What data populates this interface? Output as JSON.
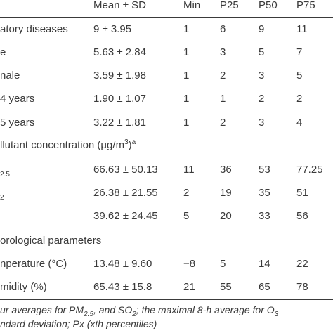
{
  "header": {
    "mean_sd": "Mean ± SD",
    "min": "Min",
    "p25": "P25",
    "p50": "P50",
    "p75": "P75"
  },
  "sections": {
    "pollutant_prefix": "llutant concentration (μg/m",
    "pollutant_sup": "3",
    "pollutant_suffix": ")",
    "pollutant_footnote_mark": "a",
    "meteo": "orological parameters"
  },
  "rows": [
    {
      "label": "atory diseases",
      "mean": "9 ± 3.95",
      "min": "1",
      "p25": "6",
      "p50": "9",
      "p75": "11"
    },
    {
      "label": "e",
      "mean": "5.63 ± 2.84",
      "min": "1",
      "p25": "3",
      "p50": "5",
      "p75": "7"
    },
    {
      "label": "nale",
      "mean": "3.59 ± 1.98",
      "min": "1",
      "p25": "2",
      "p50": "3",
      "p75": "5"
    },
    {
      "label": "4 years",
      "mean": "1.90 ± 1.07",
      "min": "1",
      "p25": "1",
      "p50": "2",
      "p75": "2"
    },
    {
      "label": "5 years",
      "mean": "3.22 ± 1.81",
      "min": "1",
      "p25": "2",
      "p50": "3",
      "p75": "4"
    },
    {
      "label_sub": "2.5",
      "mean": "66.63 ± 50.13",
      "min": "11",
      "p25": "36",
      "p50": "53",
      "p75": "77.25"
    },
    {
      "label_sub": "2",
      "mean": "26.38 ± 21.55",
      "min": "2",
      "p25": "19",
      "p50": "35",
      "p75": "51"
    },
    {
      "label": "",
      "mean": "39.62 ± 24.45",
      "min": "5",
      "p25": "20",
      "p50": "33",
      "p75": "56"
    },
    {
      "label": "nperature (°C)",
      "mean": "13.48 ± 9.60",
      "min": "−8",
      "p25": "5",
      "p50": "14",
      "p75": "22"
    },
    {
      "label": "midity (%)",
      "mean": "65.43 ± 15.8",
      "min": "21",
      "p25": "55",
      "p50": "65",
      "p75": "78"
    }
  ],
  "footnotes": {
    "line1_a": "ur averages for PM",
    "line1_sub": "2.5",
    "line1_b": ", and SO",
    "line1_sub2": "2",
    "line1_c": "; the maximal 8-h average for O",
    "line1_sub3": "3",
    "line2": "ndard deviation; Px (xth percentiles)"
  }
}
